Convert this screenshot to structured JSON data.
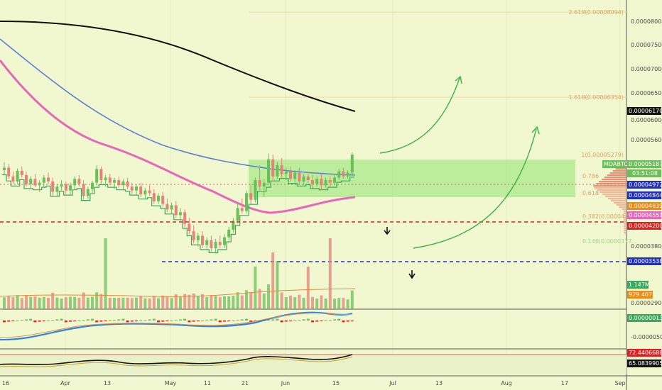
{
  "theme": {
    "background": "#f1f8cf",
    "axis_text": "#4a4a4a",
    "grid": "#e4edc0",
    "up_candle": "#6bbf59",
    "down_candle": "#e48478",
    "ma_black": "#111111",
    "ma_blue": "#5b7fd6",
    "ma_pink": "#e866b9",
    "stepline": "#3aa85a",
    "zone_green": "#8fe36f",
    "red_dash": "#e02020",
    "blue_dash": "#1f2fc6",
    "fib_text": "#e0a060",
    "arrow_green": "#3cb043"
  },
  "chart_data": {
    "type": "candlestick",
    "symbol": "MDABTC",
    "x_axis": {
      "ticks": [
        "16",
        "Apr",
        "13",
        "May",
        "11",
        "21",
        "Jun",
        "15",
        "Jul",
        "13",
        "Aug",
        "17",
        "Sep"
      ]
    },
    "y_axis": {
      "scale": "log",
      "range": [
        2.7e-06,
        8.6e-06
      ],
      "ticks": [
        "0.00008000",
        "0.00007500",
        "0.00007000",
        "0.00006500",
        "0.00006000",
        "0.00005600",
        "0.00003800",
        "0.00002900",
        "-0.00000500"
      ]
    },
    "price_labels": [
      {
        "text": "MDABTC",
        "color": "#6bbf59",
        "text_color": "#ffffff"
      },
      {
        "text": "0.00005187",
        "color": "#6bbf59",
        "text_color": "#ffffff"
      },
      {
        "text": "03:51:08",
        "color": "#6bbf59",
        "text_color": "#ffffff"
      },
      {
        "text": "0.00006170",
        "color": "#111111",
        "text_color": "#ffffff"
      },
      {
        "text": "0.00004972",
        "color": "#1f2fc6",
        "text_color": "#ffffff"
      },
      {
        "text": "0.00004844",
        "color": "#1f2fc6",
        "text_color": "#ffffff"
      },
      {
        "text": "0.00004839",
        "color": "#ee8a10",
        "text_color": "#ffffff"
      },
      {
        "text": "0.00004551",
        "color": "#e866b9",
        "text_color": "#ffffff"
      },
      {
        "text": "0.00004200",
        "color": "#e02020",
        "text_color": "#ffffff"
      },
      {
        "text": "0.00003538",
        "color": "#1f2fc6",
        "text_color": "#ffffff"
      },
      {
        "text": "1.147M",
        "color": "#3aa85a",
        "text_color": "#ffffff"
      },
      {
        "text": "929.407K",
        "color": "#ee8a10",
        "text_color": "#ffffff"
      },
      {
        "text": "0.00000013",
        "color": "#3aa85a",
        "text_color": "#ffffff"
      },
      {
        "text": "72.44066882",
        "color": "#e02020",
        "text_color": "#ffffff"
      },
      {
        "text": "65.08399050",
        "color": "#111111",
        "text_color": "#ffffff"
      }
    ],
    "fib_levels": [
      {
        "label": "2.618(0.00008094)"
      },
      {
        "label": "1.618(0.00006354)"
      },
      {
        "label": "1(0.00005279)"
      },
      {
        "label": "0.786"
      },
      {
        "label": "0.618"
      },
      {
        "label": "0.382(0.00004..."
      },
      {
        "label": "0.146(0.0000377..."
      }
    ],
    "horizontal_levels": [
      {
        "price": 4.2e-05,
        "style": "dashed",
        "color": "#e02020"
      },
      {
        "price": 3.538e-05,
        "style": "dashed",
        "color": "#1f2fc6"
      }
    ],
    "annotations": [
      "projected-upside-arrow-1",
      "projected-upside-arrow-2",
      "down-arrow-1",
      "down-arrow-2"
    ],
    "candles": [
      [
        4.92e-05,
        5.05e-05,
        4.85e-05,
        4.96e-05
      ],
      [
        4.96e-05,
        5.02e-05,
        4.78e-05,
        4.82e-05
      ],
      [
        4.82e-05,
        4.9e-05,
        4.7e-05,
        4.74e-05
      ],
      [
        4.74e-05,
        4.95e-05,
        4.7e-05,
        4.91e-05
      ],
      [
        4.91e-05,
        4.98e-05,
        4.8e-05,
        4.84e-05
      ],
      [
        4.84e-05,
        4.9e-05,
        4.66e-05,
        4.7e-05
      ],
      [
        4.7e-05,
        4.82e-05,
        4.62e-05,
        4.78e-05
      ],
      [
        4.78e-05,
        4.86e-05,
        4.65e-05,
        4.68e-05
      ],
      [
        4.68e-05,
        4.76e-05,
        4.58e-05,
        4.72e-05
      ],
      [
        4.72e-05,
        4.84e-05,
        4.64e-05,
        4.8e-05
      ],
      [
        4.8e-05,
        4.88e-05,
        4.7e-05,
        4.74e-05
      ],
      [
        4.74e-05,
        4.8e-05,
        4.5e-05,
        4.58e-05
      ],
      [
        4.58e-05,
        4.7e-05,
        4.52e-05,
        4.66e-05
      ],
      [
        4.66e-05,
        4.76e-05,
        4.6e-05,
        4.7e-05
      ],
      [
        4.7e-05,
        4.74e-05,
        4.55e-05,
        4.6e-05
      ],
      [
        4.6e-05,
        4.72e-05,
        4.52e-05,
        4.68e-05
      ],
      [
        4.68e-05,
        4.82e-05,
        4.62e-05,
        4.78e-05
      ],
      [
        4.78e-05,
        4.84e-05,
        4.66e-05,
        4.7e-05
      ],
      [
        4.7e-05,
        4.76e-05,
        4.46e-05,
        4.52e-05
      ],
      [
        4.52e-05,
        4.66e-05,
        4.48e-05,
        4.62e-05
      ],
      [
        4.62e-05,
        4.75e-05,
        4.55e-05,
        4.72e-05
      ],
      [
        4.72e-05,
        5e-05,
        4.68e-05,
        4.94e-05
      ],
      [
        4.94e-05,
        4.98e-05,
        4.7e-05,
        4.76e-05
      ],
      [
        4.76e-05,
        4.84e-05,
        4.66e-05,
        4.8e-05
      ],
      [
        4.8e-05,
        4.86e-05,
        4.68e-05,
        4.72e-05
      ],
      [
        4.72e-05,
        4.8e-05,
        4.62e-05,
        4.76e-05
      ],
      [
        4.76e-05,
        4.82e-05,
        4.64e-05,
        4.68e-05
      ],
      [
        4.68e-05,
        4.78e-05,
        4.6e-05,
        4.74e-05
      ],
      [
        4.74e-05,
        4.8e-05,
        4.62e-05,
        4.66e-05
      ],
      [
        4.66e-05,
        4.72e-05,
        4.55e-05,
        4.6e-05
      ],
      [
        4.6e-05,
        4.7e-05,
        4.52e-05,
        4.66e-05
      ],
      [
        4.66e-05,
        4.72e-05,
        4.5e-05,
        4.54e-05
      ],
      [
        4.54e-05,
        4.64e-05,
        4.48e-05,
        4.6e-05
      ],
      [
        4.6e-05,
        4.68e-05,
        4.52e-05,
        4.56e-05
      ],
      [
        4.56e-05,
        4.62e-05,
        4.4e-05,
        4.44e-05
      ],
      [
        4.44e-05,
        4.56e-05,
        4.4e-05,
        4.52e-05
      ],
      [
        4.52e-05,
        4.58e-05,
        4.36e-05,
        4.4e-05
      ],
      [
        4.4e-05,
        4.48e-05,
        4.28e-05,
        4.32e-05
      ],
      [
        4.32e-05,
        4.42e-05,
        4.26e-05,
        4.38e-05
      ],
      [
        4.38e-05,
        4.44e-05,
        4.2e-05,
        4.24e-05
      ],
      [
        4.24e-05,
        4.34e-05,
        4.16e-05,
        4.28e-05
      ],
      [
        4.28e-05,
        4.32e-05,
        4.08e-05,
        4.12e-05
      ],
      [
        4.12e-05,
        4.2e-05,
        3.98e-05,
        4.02e-05
      ],
      [
        4.02e-05,
        4.1e-05,
        3.86e-05,
        3.9e-05
      ],
      [
        3.9e-05,
        4e-05,
        3.82e-05,
        3.96e-05
      ],
      [
        3.96e-05,
        4.02e-05,
        3.8e-05,
        3.84e-05
      ],
      [
        3.84e-05,
        3.94e-05,
        3.78e-05,
        3.9e-05
      ],
      [
        3.9e-05,
        3.96e-05,
        3.76e-05,
        3.8e-05
      ],
      [
        3.8e-05,
        3.92e-05,
        3.74e-05,
        3.88e-05
      ],
      [
        3.88e-05,
        3.96e-05,
        3.8e-05,
        3.84e-05
      ],
      [
        3.84e-05,
        3.98e-05,
        3.8e-05,
        3.94e-05
      ],
      [
        3.94e-05,
        4.08e-05,
        3.9e-05,
        4.04e-05
      ],
      [
        4.04e-05,
        4.2e-05,
        4e-05,
        4.16e-05
      ],
      [
        4.16e-05,
        4.4e-05,
        4.12e-05,
        4.34e-05
      ],
      [
        4.34e-05,
        4.48e-05,
        4.26e-05,
        4.3e-05
      ],
      [
        4.3e-05,
        4.6e-05,
        4.26e-05,
        4.56e-05
      ],
      [
        4.56e-05,
        4.7e-05,
        4.4e-05,
        4.46e-05
      ],
      [
        4.46e-05,
        4.8e-05,
        4.42e-05,
        4.76e-05
      ],
      [
        4.76e-05,
        5e-05,
        4.6e-05,
        4.66e-05
      ],
      [
        4.66e-05,
        4.78e-05,
        4.5e-05,
        4.72e-05
      ],
      [
        4.72e-05,
        5.2e-05,
        4.68e-05,
        5.1e-05
      ],
      [
        5.1e-05,
        5.18e-05,
        4.76e-05,
        4.82e-05
      ],
      [
        4.82e-05,
        5.06e-05,
        4.78e-05,
        5e-05
      ],
      [
        5e-05,
        5.12e-05,
        4.8e-05,
        4.86e-05
      ],
      [
        4.86e-05,
        4.96e-05,
        4.76e-05,
        4.9e-05
      ],
      [
        4.9e-05,
        4.98e-05,
        4.74e-05,
        4.78e-05
      ],
      [
        4.78e-05,
        4.92e-05,
        4.72e-05,
        4.88e-05
      ],
      [
        4.88e-05,
        4.96e-05,
        4.7e-05,
        4.74e-05
      ],
      [
        4.74e-05,
        4.86e-05,
        4.68e-05,
        4.82e-05
      ],
      [
        4.82e-05,
        4.9e-05,
        4.72e-05,
        4.76e-05
      ],
      [
        4.76e-05,
        4.84e-05,
        4.64e-05,
        4.7e-05
      ],
      [
        4.7e-05,
        4.82e-05,
        4.66e-05,
        4.78e-05
      ],
      [
        4.78e-05,
        4.86e-05,
        4.62e-05,
        4.68e-05
      ],
      [
        4.68e-05,
        4.8e-05,
        4.64e-05,
        4.76e-05
      ],
      [
        4.76e-05,
        4.82e-05,
        4.66e-05,
        4.72e-05
      ],
      [
        4.72e-05,
        4.84e-05,
        4.68e-05,
        4.8e-05
      ],
      [
        4.8e-05,
        4.94e-05,
        4.76e-05,
        4.9e-05
      ],
      [
        4.9e-05,
        4.96e-05,
        4.78e-05,
        4.82e-05
      ],
      [
        4.82e-05,
        4.92e-05,
        4.78e-05,
        4.88e-05
      ],
      [
        4.88e-05,
        5.22e-05,
        4.84e-05,
        5.18e-05
      ]
    ]
  }
}
